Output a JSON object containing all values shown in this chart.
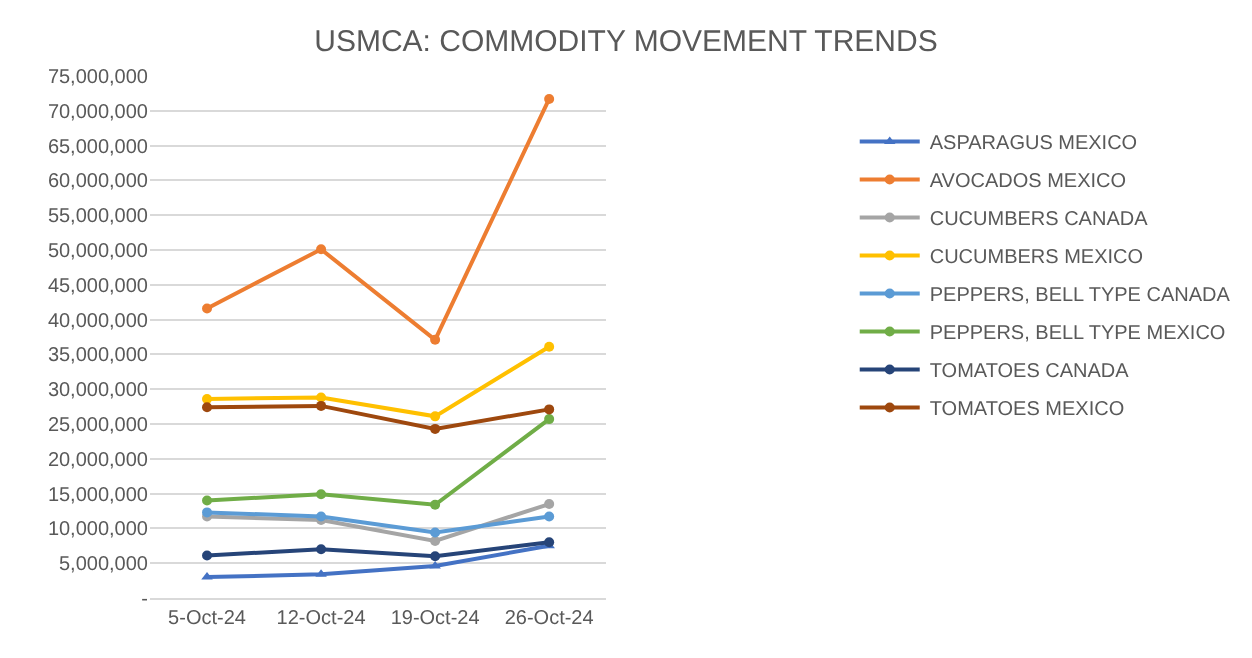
{
  "chart_data": {
    "type": "line",
    "title": "USMCA: COMMODITY MOVEMENT TRENDS",
    "categories": [
      "5-Oct-24",
      "12-Oct-24",
      "19-Oct-24",
      "26-Oct-24"
    ],
    "series": [
      {
        "name": "ASPARAGUS MEXICO",
        "color": "#4472c4",
        "marker": "triangle",
        "values": [
          3000000,
          3400000,
          4600000,
          7500000
        ]
      },
      {
        "name": "AVOCADOS MEXICO",
        "color": "#ed7d31",
        "marker": "circle",
        "values": [
          41600000,
          50100000,
          37100000,
          71700000
        ]
      },
      {
        "name": "CUCUMBERS CANADA",
        "color": "#a5a5a5",
        "marker": "circle",
        "values": [
          11700000,
          11200000,
          8200000,
          13500000
        ]
      },
      {
        "name": "CUCUMBERS MEXICO",
        "color": "#ffc000",
        "marker": "circle",
        "values": [
          28600000,
          28800000,
          26100000,
          36100000
        ]
      },
      {
        "name": "PEPPERS, BELL TYPE CANADA",
        "color": "#5b9bd5",
        "marker": "circle",
        "values": [
          12300000,
          11700000,
          9400000,
          11700000
        ]
      },
      {
        "name": "PEPPERS, BELL TYPE MEXICO",
        "color": "#70ad47",
        "marker": "circle",
        "values": [
          14000000,
          14900000,
          13400000,
          25700000
        ]
      },
      {
        "name": "TOMATOES CANADA",
        "color": "#264478",
        "marker": "circle",
        "values": [
          6100000,
          7000000,
          6000000,
          8000000
        ]
      },
      {
        "name": "TOMATOES MEXICO",
        "color": "#9e480e",
        "marker": "circle",
        "values": [
          27400000,
          27600000,
          24300000,
          27100000
        ]
      }
    ],
    "ylim": [
      0,
      75000000
    ],
    "yticks": [
      {
        "value": 0,
        "label": "-"
      },
      {
        "value": 5000000,
        "label": "5,000,000"
      },
      {
        "value": 10000000,
        "label": "10,000,000"
      },
      {
        "value": 15000000,
        "label": "15,000,000"
      },
      {
        "value": 20000000,
        "label": "20,000,000"
      },
      {
        "value": 25000000,
        "label": "25,000,000"
      },
      {
        "value": 30000000,
        "label": "30,000,000"
      },
      {
        "value": 35000000,
        "label": "35,000,000"
      },
      {
        "value": 40000000,
        "label": "40,000,000"
      },
      {
        "value": 45000000,
        "label": "45,000,000"
      },
      {
        "value": 50000000,
        "label": "50,000,000"
      },
      {
        "value": 55000000,
        "label": "55,000,000"
      },
      {
        "value": 60000000,
        "label": "60,000,000"
      },
      {
        "value": 65000000,
        "label": "65,000,000"
      },
      {
        "value": 70000000,
        "label": "70,000,000"
      },
      {
        "value": 75000000,
        "label": "75,000,000"
      }
    ],
    "grid": "y",
    "legend": "right",
    "line_style": "solid"
  }
}
